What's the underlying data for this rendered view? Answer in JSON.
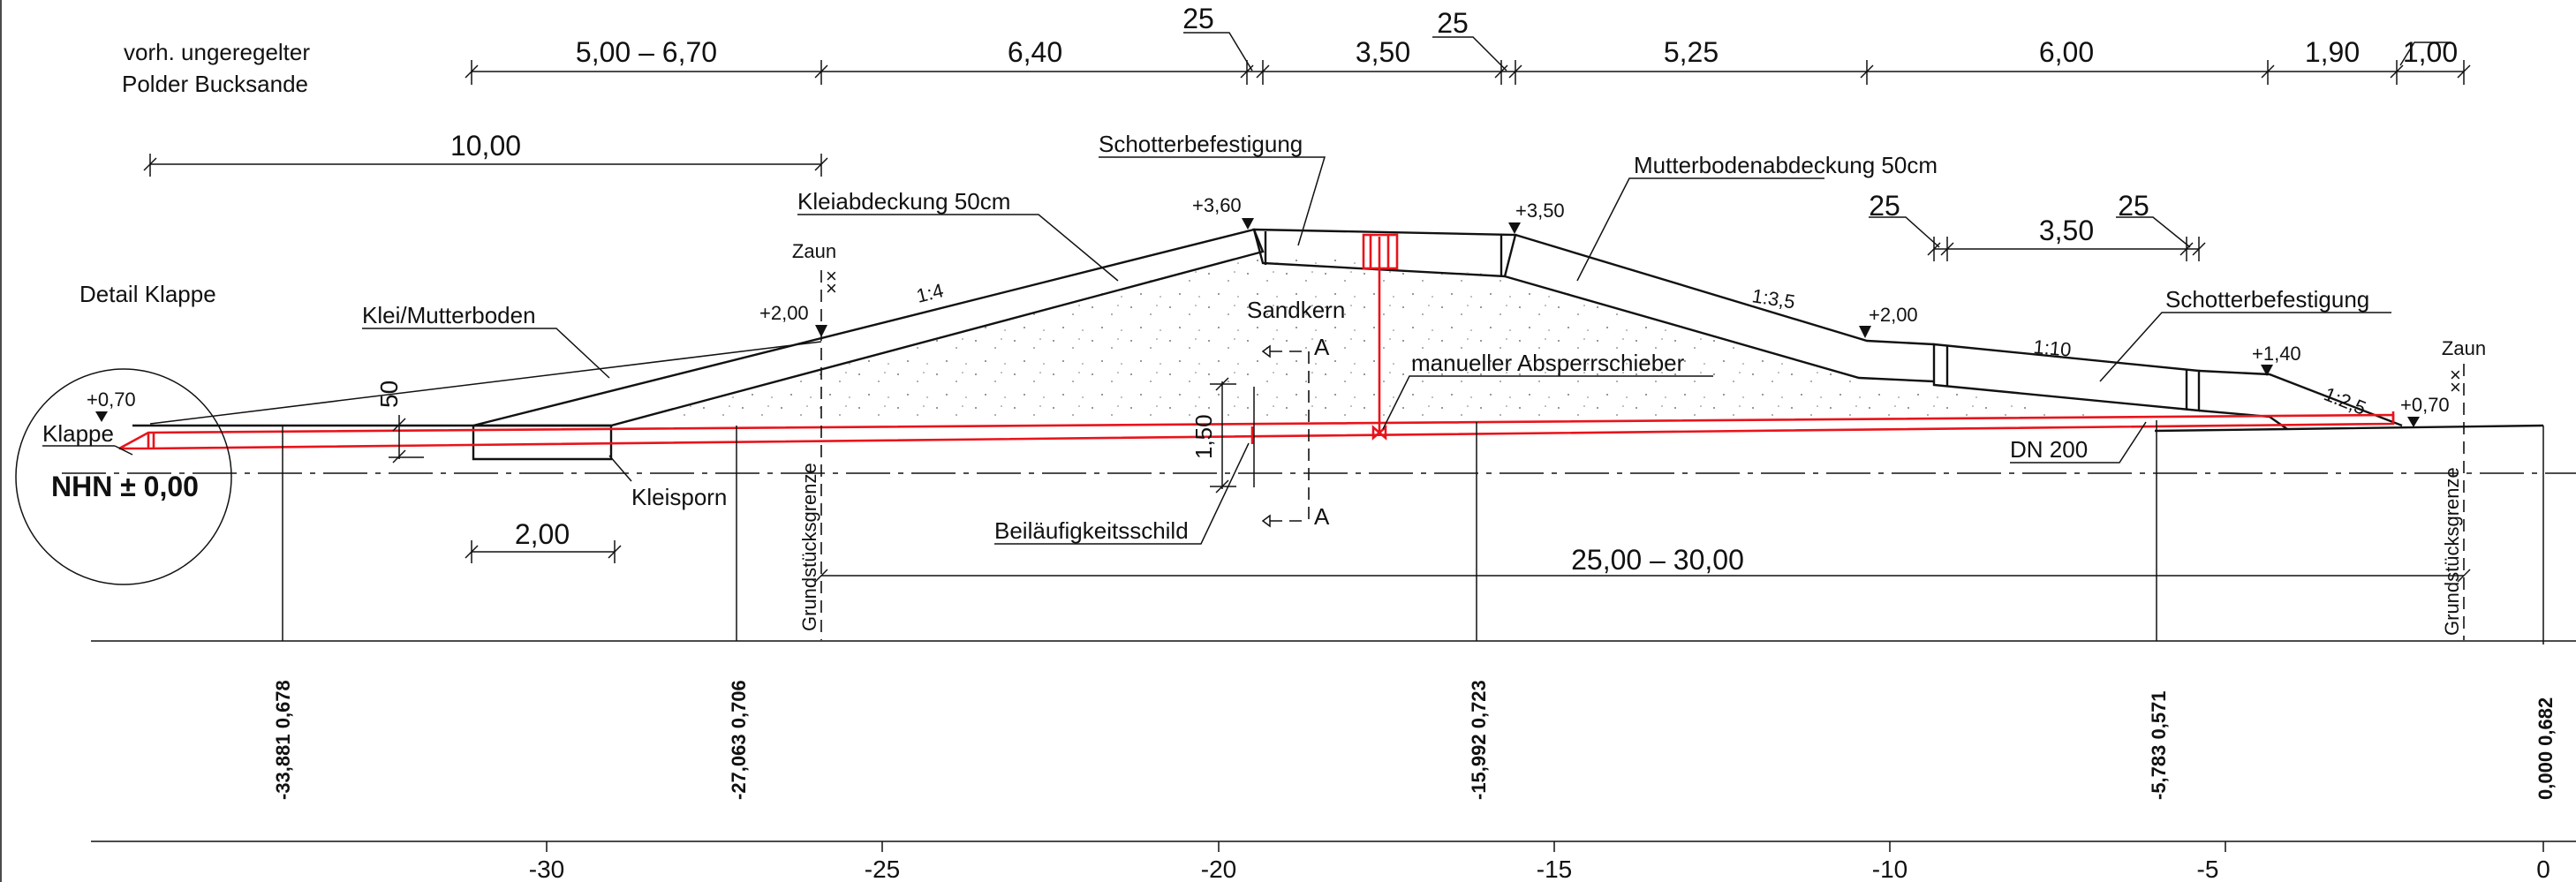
{
  "header": {
    "line1": "vorh.  ungeregelter",
    "line2": "Polder   Bucksande"
  },
  "dimensions_top": {
    "d1": "5,00  –  6,70",
    "d2": "6,40",
    "d3": "25",
    "d4": "3,50",
    "d5": "25",
    "d6": "5,25",
    "d7": "6,00",
    "d8": "1,90",
    "d9": "1,00",
    "d10": "10,00"
  },
  "dimensions_other": {
    "berm_25_left": "25",
    "berm_width": "3,50",
    "berm_25_right": "25",
    "vertical_50": "50",
    "vertical_150": "1,50",
    "kleisporn_width": "2,00",
    "total_width": "25,00  –  30,00"
  },
  "labels": {
    "detail_klappe": "Detail  Klappe",
    "klappe": "Klappe",
    "nhn": "NHN ± 0,00",
    "klei_mutterboden": "Klei/Mutterboden",
    "kleiabdeckung": "Kleiabdeckung  50cm",
    "schotter_top": "Schotterbefestigung",
    "mutterboden": "Mutterbodenabdeckung  50cm",
    "sandkern": "Sandkern",
    "schieber": "manueller  Absperrschieber",
    "schotter_berm": "Schotterbefestigung",
    "kleisporn": "Kleisporn",
    "schild": "Beiläufigkeitsschild",
    "dn": "DN  200",
    "zaun_left": "Zaun",
    "zaun_right": "Zaun",
    "grenze_left": "Grundstücksgrenze",
    "grenze_right": "Grundstücksgrenze",
    "section_a_top": "A",
    "section_a_bottom": "A"
  },
  "elevations": {
    "e070_left": "+0,70",
    "e200_left": "+2,00",
    "e360": "+3,60",
    "e350": "+3,50",
    "e200_right": "+2,00",
    "e140": "+1,40",
    "e070_right": "+0,70"
  },
  "slopes": {
    "s1": "1:4",
    "s2": "1:3,5",
    "s3": "1:10",
    "s4": "1:2,5"
  },
  "stations": {
    "s1": "-33,881  0,678",
    "s2": "-27,063  0,706",
    "s3": "-15,992  0,723",
    "s4": "-5,783   0,571",
    "s5": "0,000   0,682"
  },
  "axis": {
    "ticks": [
      "-30",
      "-25",
      "-20",
      "-15",
      "-10",
      "-5",
      "0"
    ]
  }
}
